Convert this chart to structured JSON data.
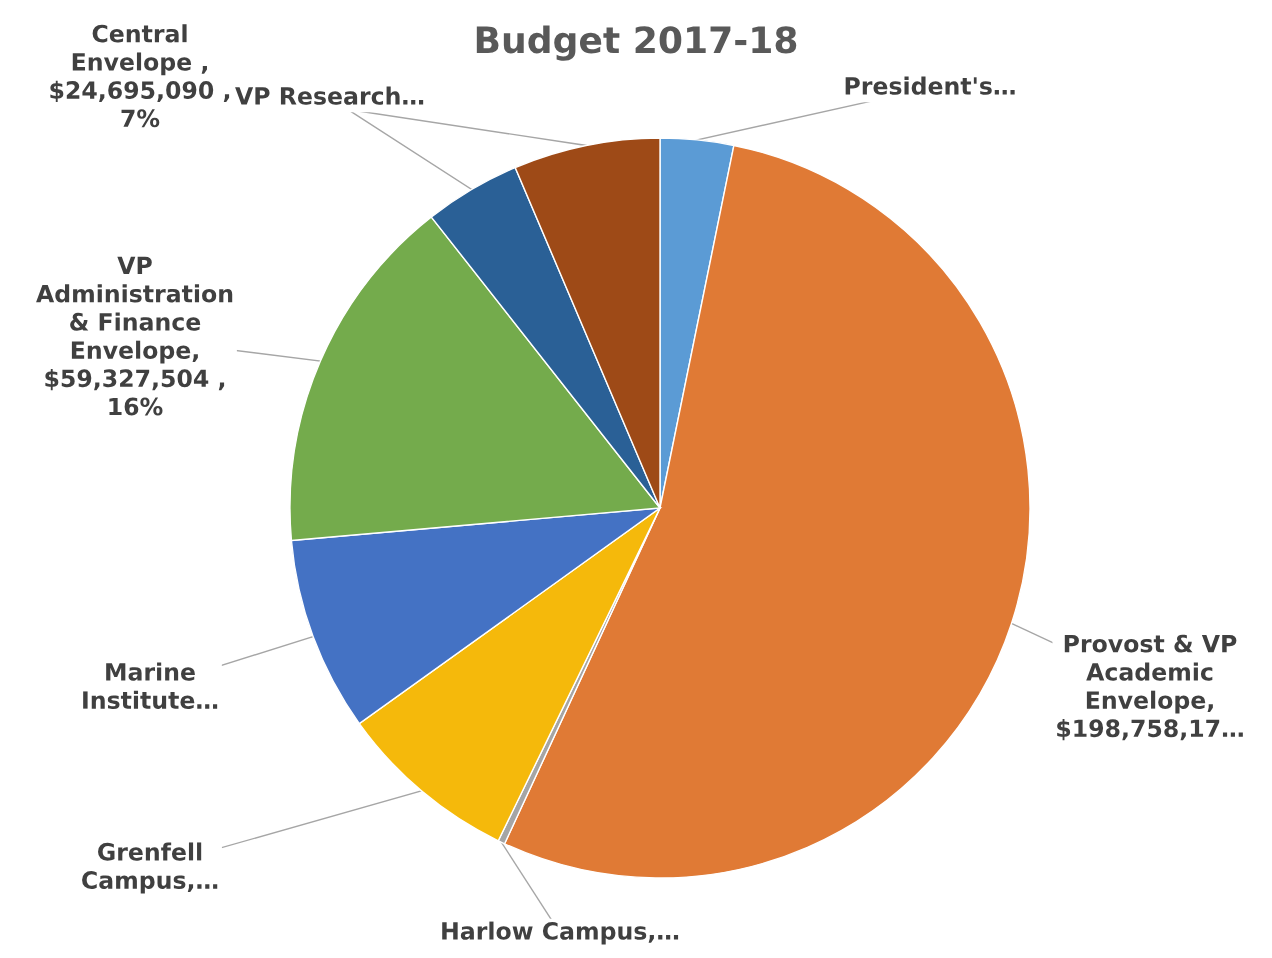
{
  "chart_data": {
    "type": "pie",
    "title": "Budget 2017-18",
    "categories": [
      "President's…",
      "Provost & VP\nAcademic\nEnvelope,\n$198,758,17…",
      "Harlow Campus,…",
      "Grenfell\nCampus,…",
      "Marine\nInstitute…",
      "VP\nAdministration\n& Finance\nEnvelope,\n$59,327,504 ,\n16%",
      "VP Research…",
      "Central\nEnvelope ,\n$24,695,090 ,\n7%"
    ],
    "values": [
      3.2,
      53.7,
      0.3,
      7.9,
      8.5,
      15.8,
      4.2,
      6.4
    ],
    "colors": [
      "#5b9bd5",
      "#e07a35",
      "#a5a5a5",
      "#f5b90b",
      "#4472c4",
      "#74ab4c",
      "#2a6096",
      "#9e4a17"
    ]
  }
}
